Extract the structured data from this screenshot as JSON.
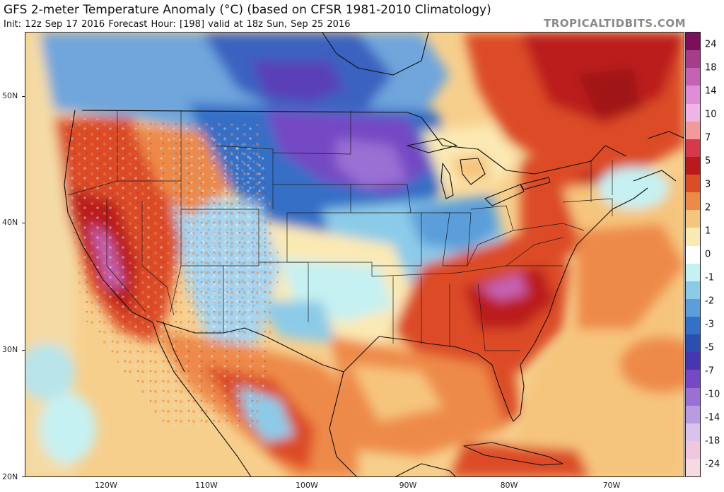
{
  "header": {
    "title": "GFS 2-meter Temperature Anomaly (°C) (based on CFSR 1981-2010 Climatology)",
    "subtitle": "Init: 12z Sep 17 2016   Forecast Hour: [198]   valid at 18z Sun, Sep 25 2016",
    "brand": "TROPICALTIDBITS.COM"
  },
  "axes": {
    "lat_labels": [
      "50N",
      "40N",
      "30N",
      "20N"
    ],
    "lon_labels": [
      "120W",
      "110W",
      "100W",
      "90W",
      "80W",
      "70W"
    ]
  },
  "colorbar": {
    "labels": [
      "24",
      "18",
      "14",
      "10",
      "7",
      "5",
      "3",
      "2",
      "1",
      "0",
      "-1",
      "-2",
      "-3",
      "-5",
      "-7",
      "-10",
      "-14",
      "-18",
      "-24"
    ],
    "colors": [
      "#7d0f5a",
      "#a63c8a",
      "#c462b3",
      "#dd8ed7",
      "#eeb4e6",
      "#f29a9a",
      "#d8394a",
      "#bb1a1d",
      "#dc4c25",
      "#ee8a48",
      "#f6c57d",
      "#fbe9b4",
      "#ffffff",
      "#c6f1f2",
      "#8ccbe8",
      "#5b9ed9",
      "#3470c6",
      "#2a4fb0",
      "#4637b0",
      "#7549c4",
      "#9a70d4",
      "#b99be0",
      "#d9c3ea",
      "#eec6dd",
      "#f7d9e0"
    ]
  },
  "map": {
    "anomaly_regions": [
      {
        "name": "great-plains-cold",
        "anomaly_c": -7
      },
      {
        "name": "intermountain-west-cold",
        "anomaly_c": -3
      },
      {
        "name": "california-great-basin-warm",
        "anomaly_c": 5
      },
      {
        "name": "southeast-us-warm",
        "anomaly_c": 5
      },
      {
        "name": "northeast-canada-warm",
        "anomaly_c": 7
      },
      {
        "name": "gulf-of-mexico-warm",
        "anomaly_c": 2
      },
      {
        "name": "western-atlantic-warm",
        "anomaly_c": 1
      },
      {
        "name": "eastern-pacific-mild",
        "anomaly_c": 1
      }
    ]
  }
}
